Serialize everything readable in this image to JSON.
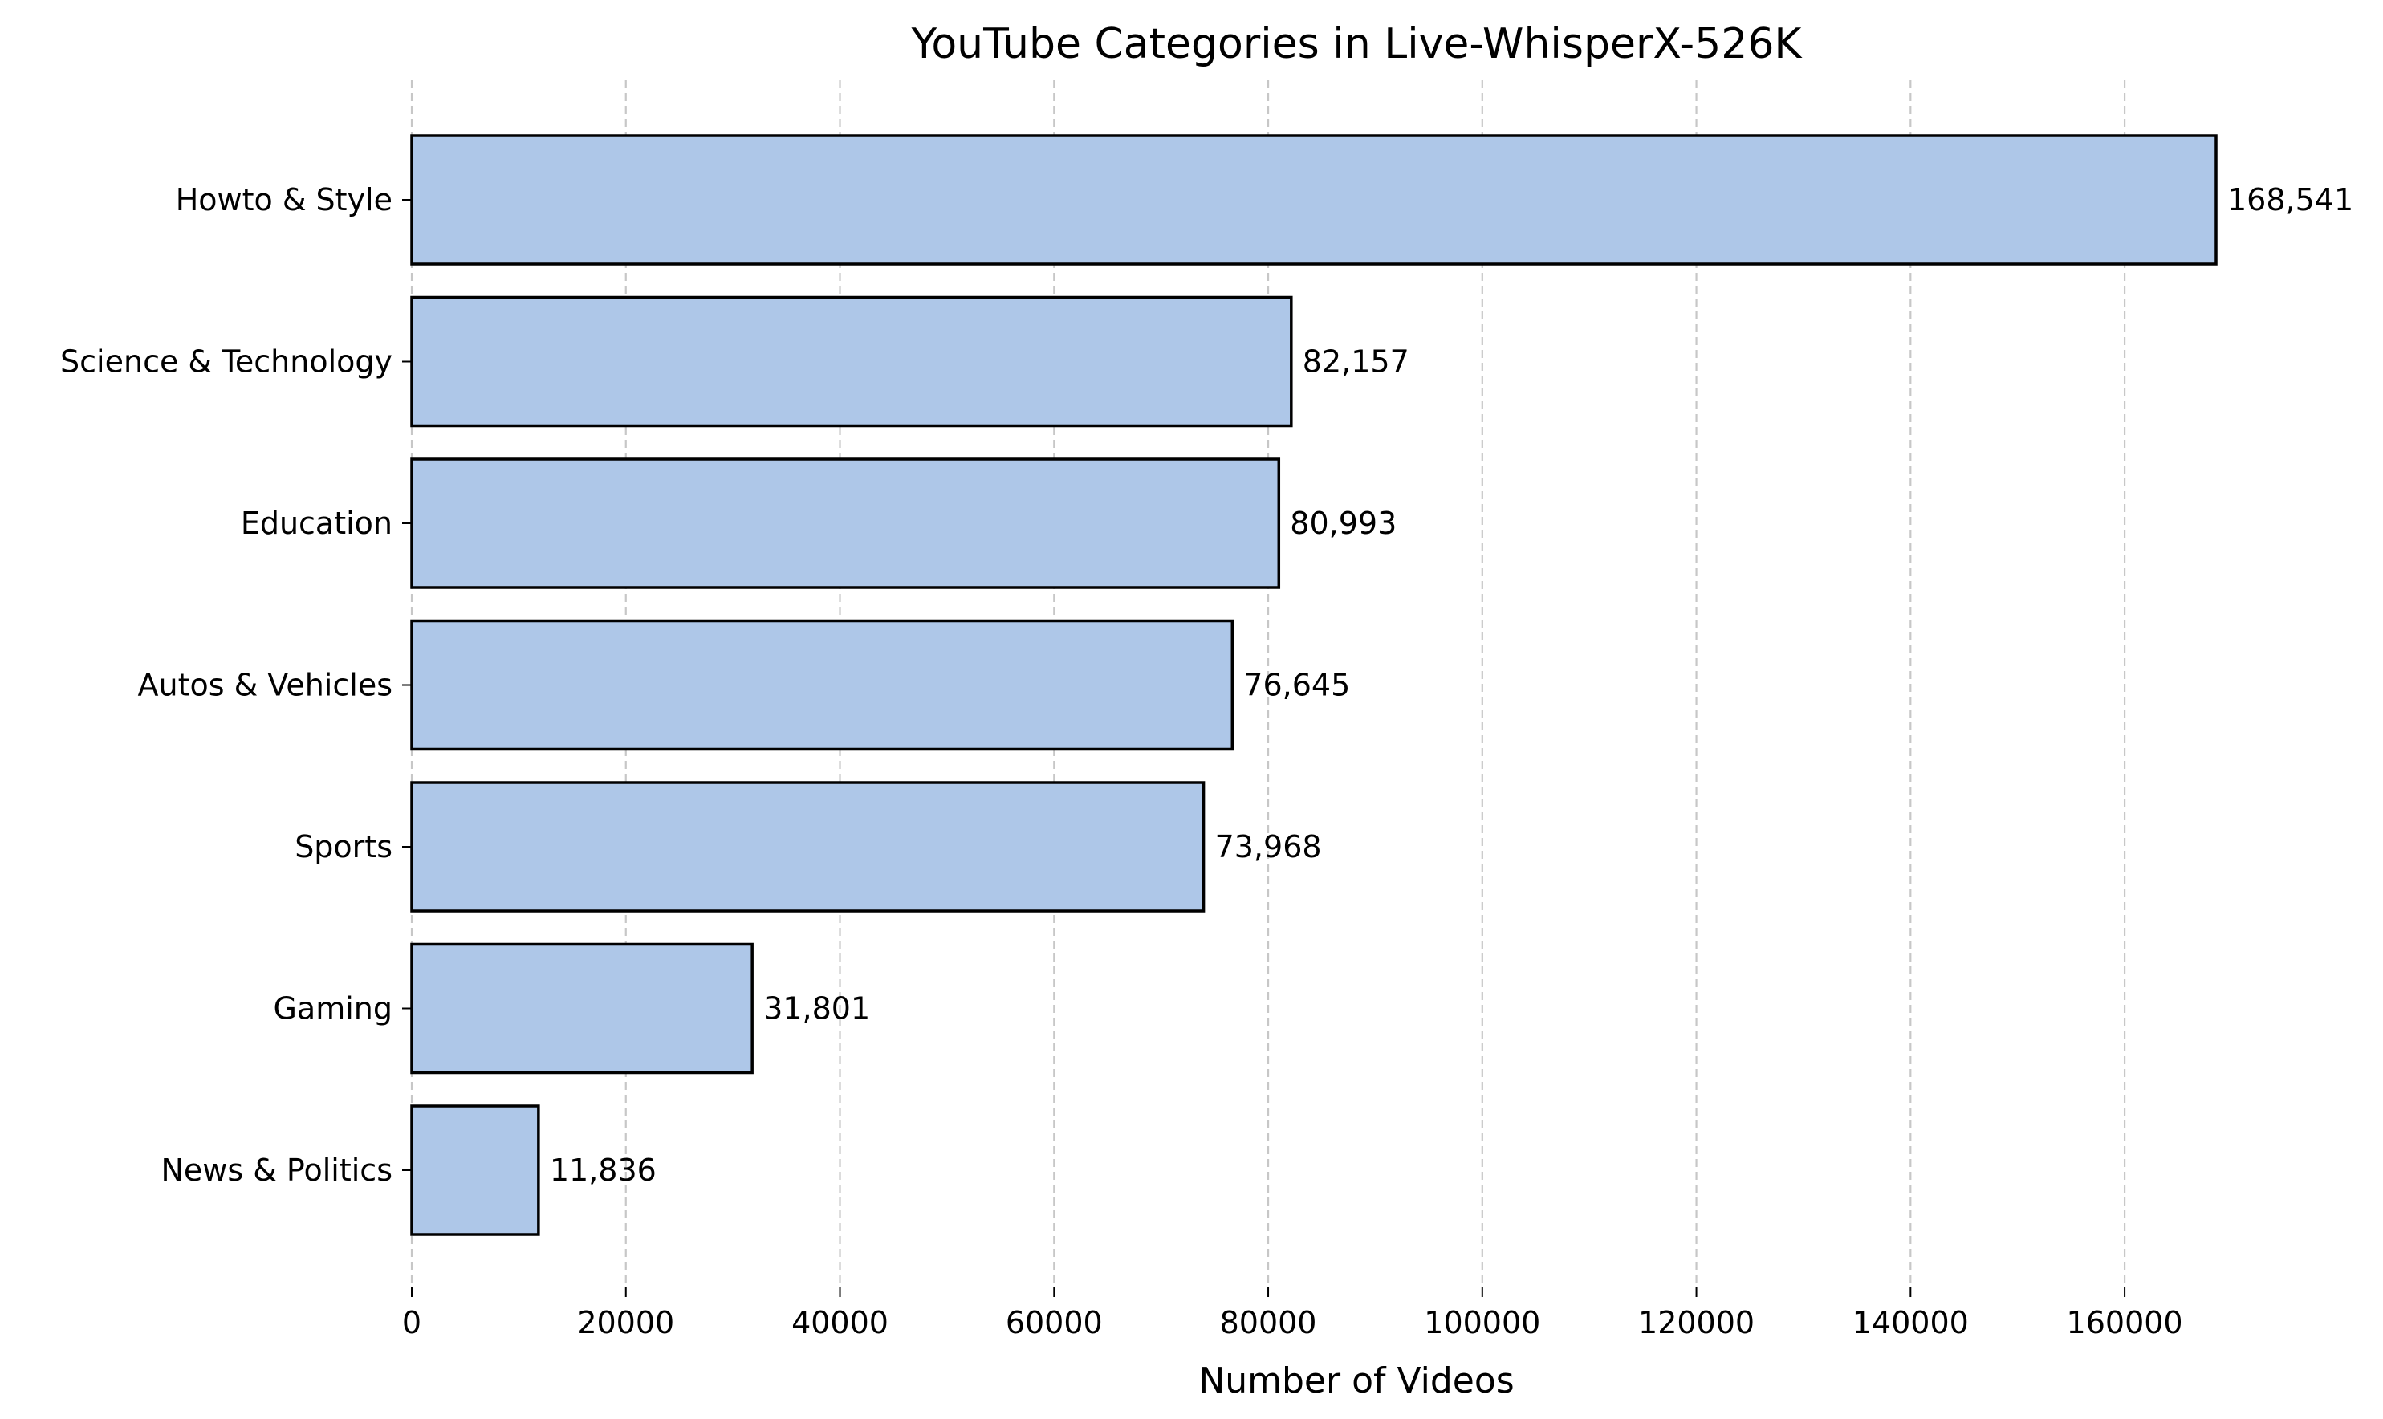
{
  "chart_data": {
    "type": "bar",
    "orientation": "horizontal",
    "title": "YouTube Categories in Live-WhisperX-526K",
    "xlabel": "Number of Videos",
    "ylabel": "",
    "categories": [
      "Howto & Style",
      "Science & Technology",
      "Education",
      "Autos & Vehicles",
      "Sports",
      "Gaming",
      "News & Politics"
    ],
    "values": [
      168541,
      82157,
      80993,
      76645,
      73968,
      31801,
      11836
    ],
    "value_labels": [
      "168,541",
      "82,157",
      "80,993",
      "76,645",
      "73,968",
      "31,801",
      "11,836"
    ],
    "xlim": [
      0,
      168541
    ],
    "xticks": [
      0,
      20000,
      40000,
      60000,
      80000,
      100000,
      120000,
      140000,
      160000
    ],
    "xtick_labels": [
      "0",
      "20000",
      "40000",
      "60000",
      "80000",
      "100000",
      "120000",
      "140000",
      "160000"
    ],
    "grid": "vertical dashed",
    "bar_color": "#aec7e8",
    "bar_edge_color": "#000000"
  }
}
